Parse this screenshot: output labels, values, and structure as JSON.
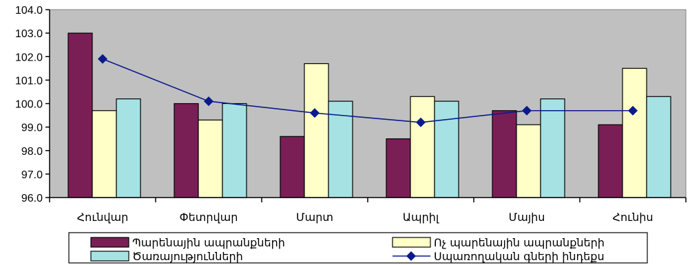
{
  "chart_data": {
    "type": "bar",
    "title": "",
    "xlabel": "",
    "ylabel": "",
    "ylim": [
      96.0,
      104.0
    ],
    "yticks": [
      "96.0",
      "97.0",
      "98.0",
      "99.0",
      "100.0",
      "101.0",
      "102.0",
      "103.0",
      "104.0"
    ],
    "categories": [
      "Հունվար",
      "Փետրվար",
      "Մարտ",
      "Ապրիլ",
      "Մայիս",
      "Հունիս"
    ],
    "series": [
      {
        "name": "Պարենային ապրանքների",
        "kind": "bar",
        "color": "#7a1e56",
        "values": [
          103.0,
          100.0,
          98.6,
          98.5,
          99.7,
          99.1
        ]
      },
      {
        "name": "Ոչ պարենային ապրանքների",
        "kind": "bar",
        "color": "#ffffc8",
        "values": [
          99.7,
          99.3,
          101.7,
          100.3,
          99.1,
          101.5
        ]
      },
      {
        "name": "Ծառայությունների",
        "kind": "bar",
        "color": "#a6e2e4",
        "values": [
          100.2,
          100.0,
          100.1,
          100.1,
          100.2,
          100.3
        ]
      },
      {
        "name": "Սպառողական գների ինդեքս",
        "kind": "line",
        "marker": "diamond",
        "color": "#0a1a8c",
        "values": [
          101.9,
          100.1,
          99.6,
          99.2,
          99.7,
          99.7
        ]
      }
    ],
    "plot_background": "#c0c0c0",
    "grid": false,
    "legend_position": "bottom"
  }
}
